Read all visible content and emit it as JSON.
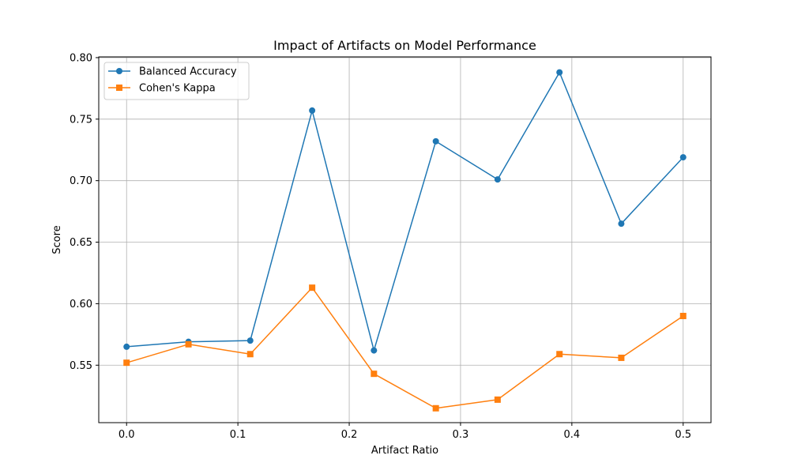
{
  "chart_data": {
    "type": "line",
    "title": "Impact of Artifacts on Model Performance",
    "xlabel": "Artifact Ratio",
    "ylabel": "Score",
    "x": [
      0.0,
      0.0556,
      0.1111,
      0.1667,
      0.2222,
      0.2778,
      0.3333,
      0.3889,
      0.4444,
      0.5
    ],
    "series": [
      {
        "name": "Balanced Accuracy",
        "color": "#1f77b4",
        "marker": "circle",
        "values": [
          0.565,
          0.569,
          0.57,
          0.757,
          0.562,
          0.732,
          0.701,
          0.788,
          0.665,
          0.719
        ]
      },
      {
        "name": "Cohen's Kappa",
        "color": "#ff7f0e",
        "marker": "square",
        "values": [
          0.552,
          0.567,
          0.559,
          0.613,
          0.543,
          0.515,
          0.522,
          0.559,
          0.556,
          0.59
        ]
      }
    ],
    "xlim": [
      -0.025,
      0.525
    ],
    "ylim": [
      0.5033,
      0.8006
    ],
    "xticks": [
      "0.0",
      "0.1",
      "0.2",
      "0.3",
      "0.4",
      "0.5"
    ],
    "yticks": [
      "0.55",
      "0.60",
      "0.65",
      "0.70",
      "0.75",
      "0.80"
    ],
    "grid": true,
    "legend_position": "top-left"
  }
}
